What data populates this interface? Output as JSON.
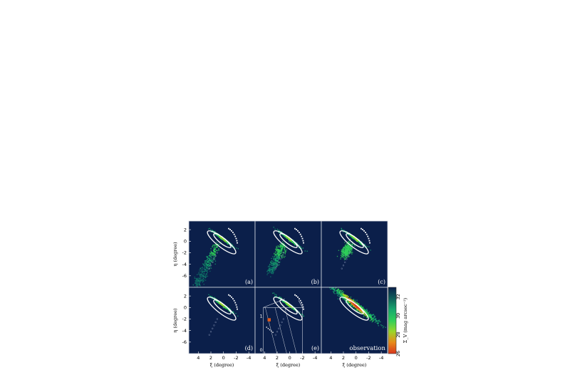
{
  "chart_data": {
    "type": "heatmap",
    "layout": "2x3 panel grid",
    "xlabel": "ξ (degree)",
    "ylabel": "η (degree)",
    "xlim": [
      5.5,
      -5.0
    ],
    "ylim": [
      -8.0,
      3.5
    ],
    "xticks": [
      4,
      2,
      0,
      -2,
      -4
    ],
    "yticks": [
      2,
      0,
      -2,
      -4,
      -6
    ],
    "background_color": "#0b1f4a",
    "panels": [
      {
        "label": "(a)",
        "stream": "long"
      },
      {
        "label": "(b)",
        "stream": "medium"
      },
      {
        "label": "(c)",
        "stream": "faint"
      },
      {
        "label": "(d)",
        "stream": "none"
      },
      {
        "label": "(e)",
        "stream": "none",
        "inset": true
      },
      {
        "label": "observation",
        "stream": "halo"
      }
    ],
    "inset": {
      "tick_labels": [
        "1",
        "0",
        "1"
      ]
    },
    "colorbar": {
      "label": "Σ_V (mag arcsec⁻²)",
      "ticks": [
        32,
        30,
        28,
        26
      ],
      "range": [
        26,
        33
      ],
      "colors": [
        "#d8361c",
        "#e88a1a",
        "#9bd62a",
        "#2fcf5a",
        "#17a86e",
        "#0f5f5a",
        "#0b1f4a"
      ]
    }
  }
}
